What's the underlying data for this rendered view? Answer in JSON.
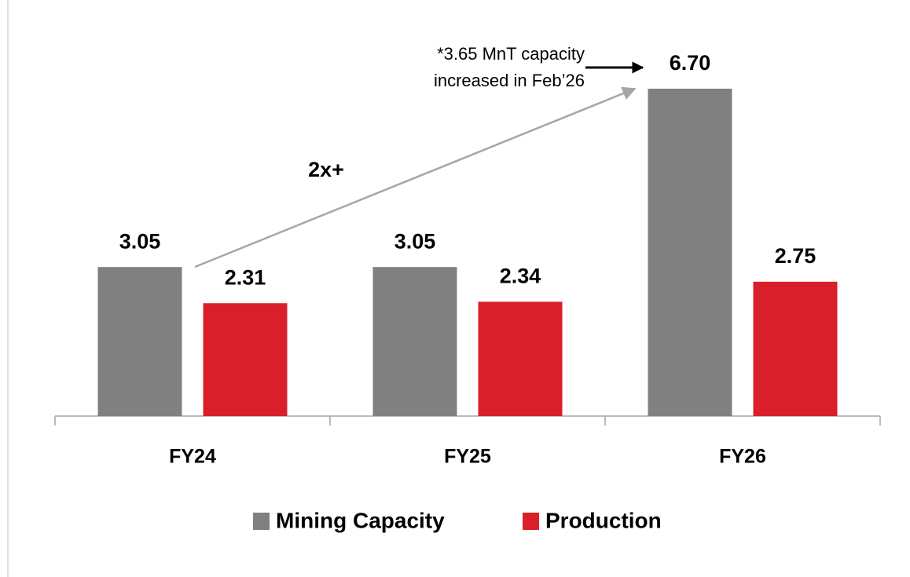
{
  "chart_data": {
    "type": "bar",
    "categories": [
      "FY24",
      "FY25",
      "FY26"
    ],
    "series": [
      {
        "name": "Mining Capacity",
        "color": "#808080",
        "values": [
          3.05,
          3.05,
          6.7
        ],
        "value_labels": [
          "3.05",
          "3.05",
          "6.70"
        ]
      },
      {
        "name": "Production",
        "color": "#d9202a",
        "values": [
          2.31,
          2.34,
          2.75
        ],
        "value_labels": [
          "2.31",
          "2.34",
          "2.75"
        ]
      }
    ],
    "annotations": {
      "growth": "2x+",
      "note": [
        "*3.65 MnT capacity",
        "increased in Feb’26"
      ]
    },
    "legend": "bottom"
  }
}
